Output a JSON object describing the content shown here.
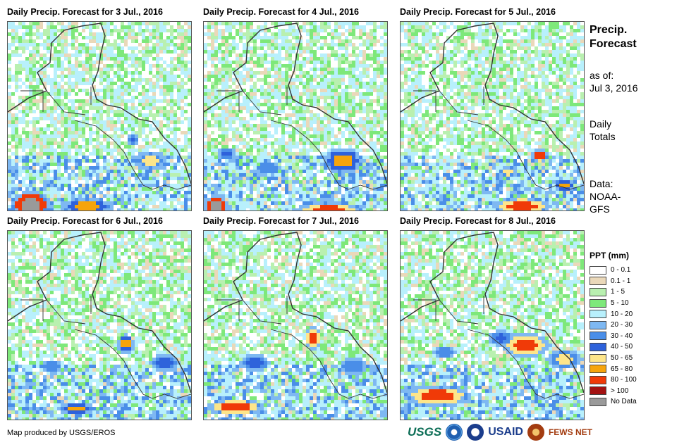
{
  "panels": [
    {
      "title": "Daily Precip. Forecast for 3 Jul., 2016",
      "rain": [
        {
          "cx": 30,
          "cy": 258,
          "rx": 30,
          "ry": 20,
          "level": 12
        },
        {
          "cx": 110,
          "cy": 260,
          "rx": 40,
          "ry": 12,
          "level": 9
        },
        {
          "cx": 200,
          "cy": 195,
          "rx": 22,
          "ry": 14,
          "level": 8
        },
        {
          "cx": 175,
          "cy": 165,
          "rx": 8,
          "ry": 10,
          "level": 7
        }
      ]
    },
    {
      "title": "Daily Precip. Forecast for 4 Jul., 2016",
      "rain": [
        {
          "cx": 15,
          "cy": 260,
          "rx": 18,
          "ry": 18,
          "level": 12
        },
        {
          "cx": 175,
          "cy": 265,
          "rx": 48,
          "ry": 12,
          "level": 10
        },
        {
          "cx": 195,
          "cy": 195,
          "rx": 28,
          "ry": 20,
          "level": 9
        },
        {
          "cx": 30,
          "cy": 185,
          "rx": 12,
          "ry": 10,
          "level": 7
        },
        {
          "cx": 90,
          "cy": 205,
          "rx": 18,
          "ry": 8,
          "level": 6
        }
      ]
    },
    {
      "title": "Daily Precip. Forecast for 5 Jul., 2016",
      "rain": [
        {
          "cx": 195,
          "cy": 188,
          "rx": 14,
          "ry": 10,
          "level": 10
        },
        {
          "cx": 170,
          "cy": 260,
          "rx": 42,
          "ry": 14,
          "level": 10
        },
        {
          "cx": 230,
          "cy": 230,
          "rx": 14,
          "ry": 10,
          "level": 9
        },
        {
          "cx": 150,
          "cy": 212,
          "rx": 12,
          "ry": 8,
          "level": 8
        }
      ]
    },
    {
      "title": "Daily Precip. Forecast for 6 Jul., 2016",
      "rain": [
        {
          "cx": 165,
          "cy": 158,
          "rx": 12,
          "ry": 14,
          "level": 9
        },
        {
          "cx": 95,
          "cy": 250,
          "rx": 26,
          "ry": 8,
          "level": 9
        },
        {
          "cx": 220,
          "cy": 185,
          "rx": 22,
          "ry": 12,
          "level": 7
        },
        {
          "cx": 60,
          "cy": 190,
          "rx": 14,
          "ry": 10,
          "level": 6
        }
      ]
    },
    {
      "title": "Daily Precip. Forecast for 7 Jul., 2016",
      "rain": [
        {
          "cx": 42,
          "cy": 248,
          "rx": 42,
          "ry": 12,
          "level": 10
        },
        {
          "cx": 152,
          "cy": 150,
          "rx": 12,
          "ry": 18,
          "level": 10
        },
        {
          "cx": 70,
          "cy": 185,
          "rx": 22,
          "ry": 12,
          "level": 7
        },
        {
          "cx": 210,
          "cy": 190,
          "rx": 20,
          "ry": 12,
          "level": 6
        }
      ]
    },
    {
      "title": "Daily Precip. Forecast for 8 Jul., 2016",
      "rain": [
        {
          "cx": 50,
          "cy": 232,
          "rx": 48,
          "ry": 16,
          "level": 10
        },
        {
          "cx": 175,
          "cy": 160,
          "rx": 36,
          "ry": 18,
          "level": 10
        },
        {
          "cx": 230,
          "cy": 180,
          "rx": 26,
          "ry": 14,
          "level": 8
        },
        {
          "cx": 140,
          "cy": 150,
          "rx": 18,
          "ry": 12,
          "level": 7
        },
        {
          "cx": 60,
          "cy": 170,
          "rx": 16,
          "ry": 10,
          "level": 6
        }
      ]
    }
  ],
  "sidebar": {
    "title_line1": "Precip.",
    "title_line2": "Forecast",
    "asof_line1": "as of:",
    "asof_line2": "Jul 3, 2016",
    "daily_line1": "Daily",
    "daily_line2": "Totals",
    "data_line1": "Data:",
    "data_line2": "NOAA-",
    "data_line3": "GFS"
  },
  "legend": {
    "title": "PPT (mm)",
    "items": [
      {
        "label": "0 - 0.1",
        "color": "#ffffff"
      },
      {
        "label": "0.1 - 1",
        "color": "#ead8b9"
      },
      {
        "label": "1 - 5",
        "color": "#b9f0b0"
      },
      {
        "label": "5 - 10",
        "color": "#7ee87a"
      },
      {
        "label": "10 - 20",
        "color": "#b8f0fc"
      },
      {
        "label": "20 - 30",
        "color": "#7eb8f2"
      },
      {
        "label": "30 - 40",
        "color": "#4a8ee8"
      },
      {
        "label": "40 - 50",
        "color": "#2e62db"
      },
      {
        "label": "50 - 65",
        "color": "#fde58a"
      },
      {
        "label": "65 - 80",
        "color": "#f6a40c"
      },
      {
        "label": "80 - 100",
        "color": "#f03a08"
      },
      {
        "label": "> 100",
        "color": "#a31212"
      },
      {
        "label": "No Data",
        "color": "#9a9a9a"
      }
    ]
  },
  "credit": "Map produced by USGS/EROS",
  "logos": {
    "usgs": "USGS",
    "usaid": "USAID",
    "fews": "FEWS NET"
  }
}
